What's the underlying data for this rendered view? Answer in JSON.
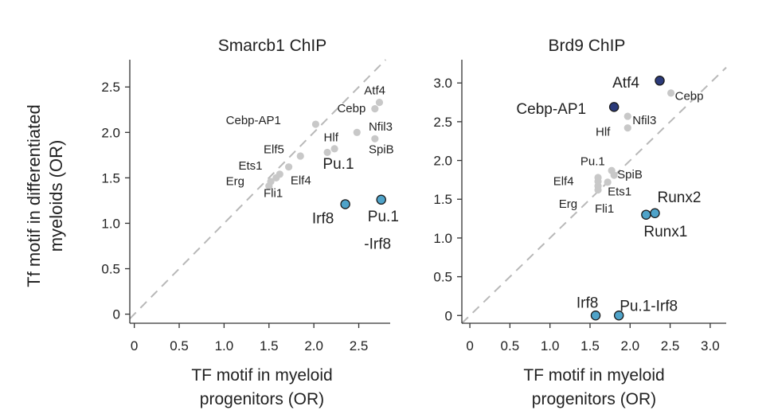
{
  "figure": {
    "ylabel_line1": "Tf motif  in differentiated",
    "ylabel_line2": "myeloids (OR)"
  },
  "chart_data": [
    {
      "type": "scatter",
      "title": "Smarcb1 ChIP",
      "xlabel_line1": "TF motif in myeloid",
      "xlabel_line2": "progenitors (OR)",
      "xlim": [
        -0.05,
        2.85
      ],
      "ylim": [
        -0.1,
        2.8
      ],
      "xticks": [
        {
          "v": 0,
          "label": "0"
        },
        {
          "v": 0.5,
          "label": "0.5"
        },
        {
          "v": 1.0,
          "label": "1.0"
        },
        {
          "v": 1.5,
          "label": "1.5"
        },
        {
          "v": 2.0,
          "label": "2.0"
        },
        {
          "v": 2.5,
          "label": "2.5"
        }
      ],
      "yticks": [
        {
          "v": 0,
          "label": "0"
        },
        {
          "v": 0.5,
          "label": "0.5"
        },
        {
          "v": 1.0,
          "label": "1.0"
        },
        {
          "v": 1.5,
          "label": "1.5"
        },
        {
          "v": 2.0,
          "label": "2.0"
        },
        {
          "v": 2.5,
          "label": "2.5"
        }
      ],
      "diagonal": true,
      "grid": false,
      "points": [
        {
          "x": 2.73,
          "y": 2.33,
          "color": "#c8c8c8"
        },
        {
          "x": 2.68,
          "y": 2.26,
          "color": "#c8c8c8"
        },
        {
          "x": 2.02,
          "y": 2.09,
          "color": "#c8c8c8"
        },
        {
          "x": 2.48,
          "y": 2.0,
          "color": "#c8c8c8"
        },
        {
          "x": 2.68,
          "y": 1.93,
          "color": "#c8c8c8"
        },
        {
          "x": 2.23,
          "y": 1.82,
          "color": "#c8c8c8"
        },
        {
          "x": 2.15,
          "y": 1.78,
          "color": "#c8c8c8"
        },
        {
          "x": 1.85,
          "y": 1.74,
          "color": "#c8c8c8"
        },
        {
          "x": 1.72,
          "y": 1.62,
          "color": "#c8c8c8"
        },
        {
          "x": 1.62,
          "y": 1.54,
          "color": "#c8c8c8"
        },
        {
          "x": 1.58,
          "y": 1.5,
          "color": "#c8c8c8"
        },
        {
          "x": 1.52,
          "y": 1.46,
          "color": "#c8c8c8"
        },
        {
          "x": 1.5,
          "y": 1.41,
          "color": "#c8c8c8"
        },
        {
          "x": 2.35,
          "y": 1.21,
          "color": "#4fa3c9"
        },
        {
          "x": 2.75,
          "y": 1.26,
          "color": "#4fa3c9"
        }
      ],
      "labels": [
        {
          "text": "Atf4",
          "x": 2.56,
          "y": 2.42
        },
        {
          "text": "Cebp",
          "x": 2.26,
          "y": 2.22
        },
        {
          "text": "Cebp-AP1",
          "x": 1.02,
          "y": 2.09
        },
        {
          "text": "Nfil3",
          "x": 2.61,
          "y": 2.02
        },
        {
          "text": "Hlf",
          "x": 2.11,
          "y": 1.9
        },
        {
          "text": "SpiB",
          "x": 2.61,
          "y": 1.77
        },
        {
          "text": "Elf5",
          "x": 1.44,
          "y": 1.77
        },
        {
          "text": "Ets1",
          "x": 1.16,
          "y": 1.59
        },
        {
          "text": "Pu.1",
          "x": 2.1,
          "y": 1.6
        },
        {
          "text": "Erg",
          "x": 1.02,
          "y": 1.42
        },
        {
          "text": "Elf4",
          "x": 1.74,
          "y": 1.43
        },
        {
          "text": "Fli1",
          "x": 1.44,
          "y": 1.29
        },
        {
          "text": "Irf8",
          "x": 1.98,
          "y": 1.0
        },
        {
          "text": "Pu.1",
          "x": 2.6,
          "y": 1.02
        },
        {
          "text": "-Irf8",
          "x": 2.56,
          "y": 0.72
        }
      ]
    },
    {
      "type": "scatter",
      "title": "Brd9 ChIP",
      "xlabel_line1": "TF motif in myeloid",
      "xlabel_line2": "progenitors (OR)",
      "xlim": [
        -0.1,
        3.2
      ],
      "ylim": [
        -0.1,
        3.3
      ],
      "xticks": [
        {
          "v": 0,
          "label": "0"
        },
        {
          "v": 0.5,
          "label": "0.5"
        },
        {
          "v": 1.0,
          "label": "1.0"
        },
        {
          "v": 1.5,
          "label": "1.5"
        },
        {
          "v": 2.0,
          "label": "2.0"
        },
        {
          "v": 2.5,
          "label": "2.5"
        },
        {
          "v": 3.0,
          "label": "3.0"
        }
      ],
      "yticks": [
        {
          "v": 0,
          "label": "0"
        },
        {
          "v": 0.5,
          "label": "0.5"
        },
        {
          "v": 1.0,
          "label": "1.0"
        },
        {
          "v": 1.5,
          "label": "1.5"
        },
        {
          "v": 2.0,
          "label": "2.0"
        },
        {
          "v": 2.5,
          "label": "2.5"
        },
        {
          "v": 3.0,
          "label": "3.0"
        }
      ],
      "diagonal": true,
      "grid": false,
      "points": [
        {
          "x": 2.37,
          "y": 3.03,
          "color": "#2b3a7a"
        },
        {
          "x": 2.51,
          "y": 2.87,
          "color": "#c8c8c8"
        },
        {
          "x": 1.8,
          "y": 2.69,
          "color": "#2b3a7a"
        },
        {
          "x": 1.97,
          "y": 2.57,
          "color": "#c8c8c8"
        },
        {
          "x": 1.97,
          "y": 2.42,
          "color": "#c8c8c8"
        },
        {
          "x": 1.77,
          "y": 1.87,
          "color": "#c8c8c8"
        },
        {
          "x": 1.8,
          "y": 1.81,
          "color": "#c8c8c8"
        },
        {
          "x": 1.6,
          "y": 1.78,
          "color": "#c8c8c8"
        },
        {
          "x": 1.6,
          "y": 1.73,
          "color": "#c8c8c8"
        },
        {
          "x": 1.72,
          "y": 1.72,
          "color": "#c8c8c8"
        },
        {
          "x": 1.6,
          "y": 1.67,
          "color": "#c8c8c8"
        },
        {
          "x": 1.6,
          "y": 1.62,
          "color": "#c8c8c8"
        },
        {
          "x": 2.2,
          "y": 1.3,
          "color": "#4fa3c9"
        },
        {
          "x": 2.31,
          "y": 1.32,
          "color": "#4fa3c9"
        },
        {
          "x": 1.57,
          "y": 0.0,
          "color": "#4fa3c9"
        },
        {
          "x": 1.86,
          "y": 0.0,
          "color": "#4fa3c9"
        }
      ],
      "labels": [
        {
          "text": "Atf4",
          "x": 1.78,
          "y": 2.94
        },
        {
          "text": "Cebp",
          "x": 2.56,
          "y": 2.78
        },
        {
          "text": "Cebp-AP1",
          "x": 0.58,
          "y": 2.6
        },
        {
          "text": "Nfil3",
          "x": 2.03,
          "y": 2.47
        },
        {
          "text": "Hlf",
          "x": 1.57,
          "y": 2.32
        },
        {
          "text": "Pu.1",
          "x": 1.38,
          "y": 1.94
        },
        {
          "text": "SpiB",
          "x": 1.84,
          "y": 1.77
        },
        {
          "text": "Elf4",
          "x": 1.04,
          "y": 1.68
        },
        {
          "text": "Ets1",
          "x": 1.72,
          "y": 1.55
        },
        {
          "text": "Erg",
          "x": 1.11,
          "y": 1.39
        },
        {
          "text": "Fli1",
          "x": 1.56,
          "y": 1.33
        },
        {
          "text": "Runx2",
          "x": 2.34,
          "y": 1.46
        },
        {
          "text": "Runx1",
          "x": 2.17,
          "y": 1.02
        },
        {
          "text": "Irf8",
          "x": 1.33,
          "y": 0.1
        },
        {
          "text": "Pu.1-Irf8",
          "x": 1.87,
          "y": 0.06
        }
      ]
    }
  ]
}
